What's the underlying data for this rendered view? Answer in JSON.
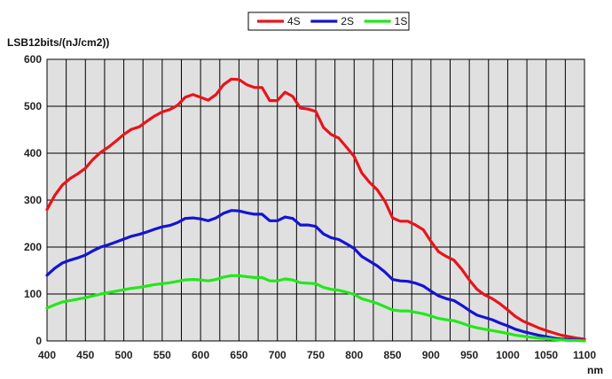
{
  "chart_data": {
    "type": "line",
    "ylabel": "LSB12bits/(nJ/cm2))",
    "xunit": "nm",
    "xlim": [
      400,
      1100
    ],
    "ylim": [
      0,
      600
    ],
    "xticks": [
      400,
      450,
      500,
      550,
      600,
      650,
      700,
      750,
      800,
      850,
      900,
      950,
      1000,
      1050,
      1100
    ],
    "yticks": [
      0,
      100,
      200,
      300,
      400,
      500,
      600
    ],
    "x_gridlines_every": 25,
    "grid": true,
    "plot_background": "#e0e0e0",
    "legend_position": "top-center",
    "x": [
      400,
      410,
      420,
      430,
      440,
      450,
      460,
      470,
      480,
      490,
      500,
      510,
      520,
      530,
      540,
      550,
      560,
      570,
      580,
      590,
      600,
      610,
      620,
      630,
      640,
      650,
      660,
      670,
      680,
      690,
      700,
      710,
      720,
      730,
      740,
      750,
      760,
      770,
      780,
      790,
      800,
      810,
      820,
      830,
      840,
      850,
      860,
      870,
      880,
      890,
      900,
      910,
      920,
      930,
      940,
      950,
      960,
      970,
      980,
      990,
      1000,
      1010,
      1020,
      1030,
      1040,
      1050,
      1060,
      1070,
      1080,
      1090,
      1100
    ],
    "series": [
      {
        "name": "4S",
        "color": "#e8141b",
        "values": [
          280,
          310,
          332,
          346,
          356,
          368,
          387,
          402,
          413,
          426,
          440,
          451,
          456,
          468,
          479,
          488,
          493,
          502,
          519,
          525,
          519,
          513,
          525,
          546,
          558,
          557,
          546,
          540,
          540,
          512,
          512,
          530,
          521,
          496,
          494,
          489,
          455,
          440,
          432,
          413,
          393,
          358,
          338,
          322,
          298,
          262,
          255,
          255,
          247,
          237,
          212,
          190,
          180,
          172,
          153,
          130,
          110,
          98,
          90,
          79,
          66,
          52,
          42,
          35,
          28,
          22,
          17,
          12,
          9,
          6,
          4
        ]
      },
      {
        "name": "2S",
        "color": "#1414d2",
        "values": [
          140,
          155,
          166,
          172,
          177,
          183,
          192,
          200,
          205,
          211,
          217,
          223,
          227,
          232,
          238,
          243,
          246,
          252,
          261,
          262,
          260,
          256,
          262,
          272,
          278,
          277,
          273,
          270,
          270,
          256,
          256,
          264,
          261,
          247,
          247,
          244,
          228,
          220,
          216,
          207,
          197,
          180,
          170,
          160,
          147,
          131,
          128,
          127,
          123,
          117,
          106,
          96,
          90,
          86,
          76,
          65,
          55,
          50,
          45,
          38,
          32,
          25,
          20,
          16,
          12,
          9,
          6,
          4,
          3,
          2,
          1
        ]
      },
      {
        "name": "1S",
        "color": "#22e81a",
        "values": [
          70,
          77,
          83,
          86,
          89,
          92,
          96,
          100,
          103,
          106,
          109,
          112,
          114,
          117,
          120,
          122,
          124,
          127,
          130,
          131,
          130,
          128,
          131,
          136,
          139,
          139,
          137,
          135,
          135,
          128,
          128,
          132,
          130,
          124,
          123,
          122,
          114,
          110,
          108,
          104,
          99,
          90,
          85,
          80,
          73,
          66,
          64,
          64,
          61,
          58,
          53,
          48,
          45,
          43,
          38,
          32,
          28,
          25,
          22,
          19,
          16,
          12,
          10,
          8,
          6,
          5,
          3,
          2,
          1,
          1,
          0
        ]
      }
    ]
  }
}
